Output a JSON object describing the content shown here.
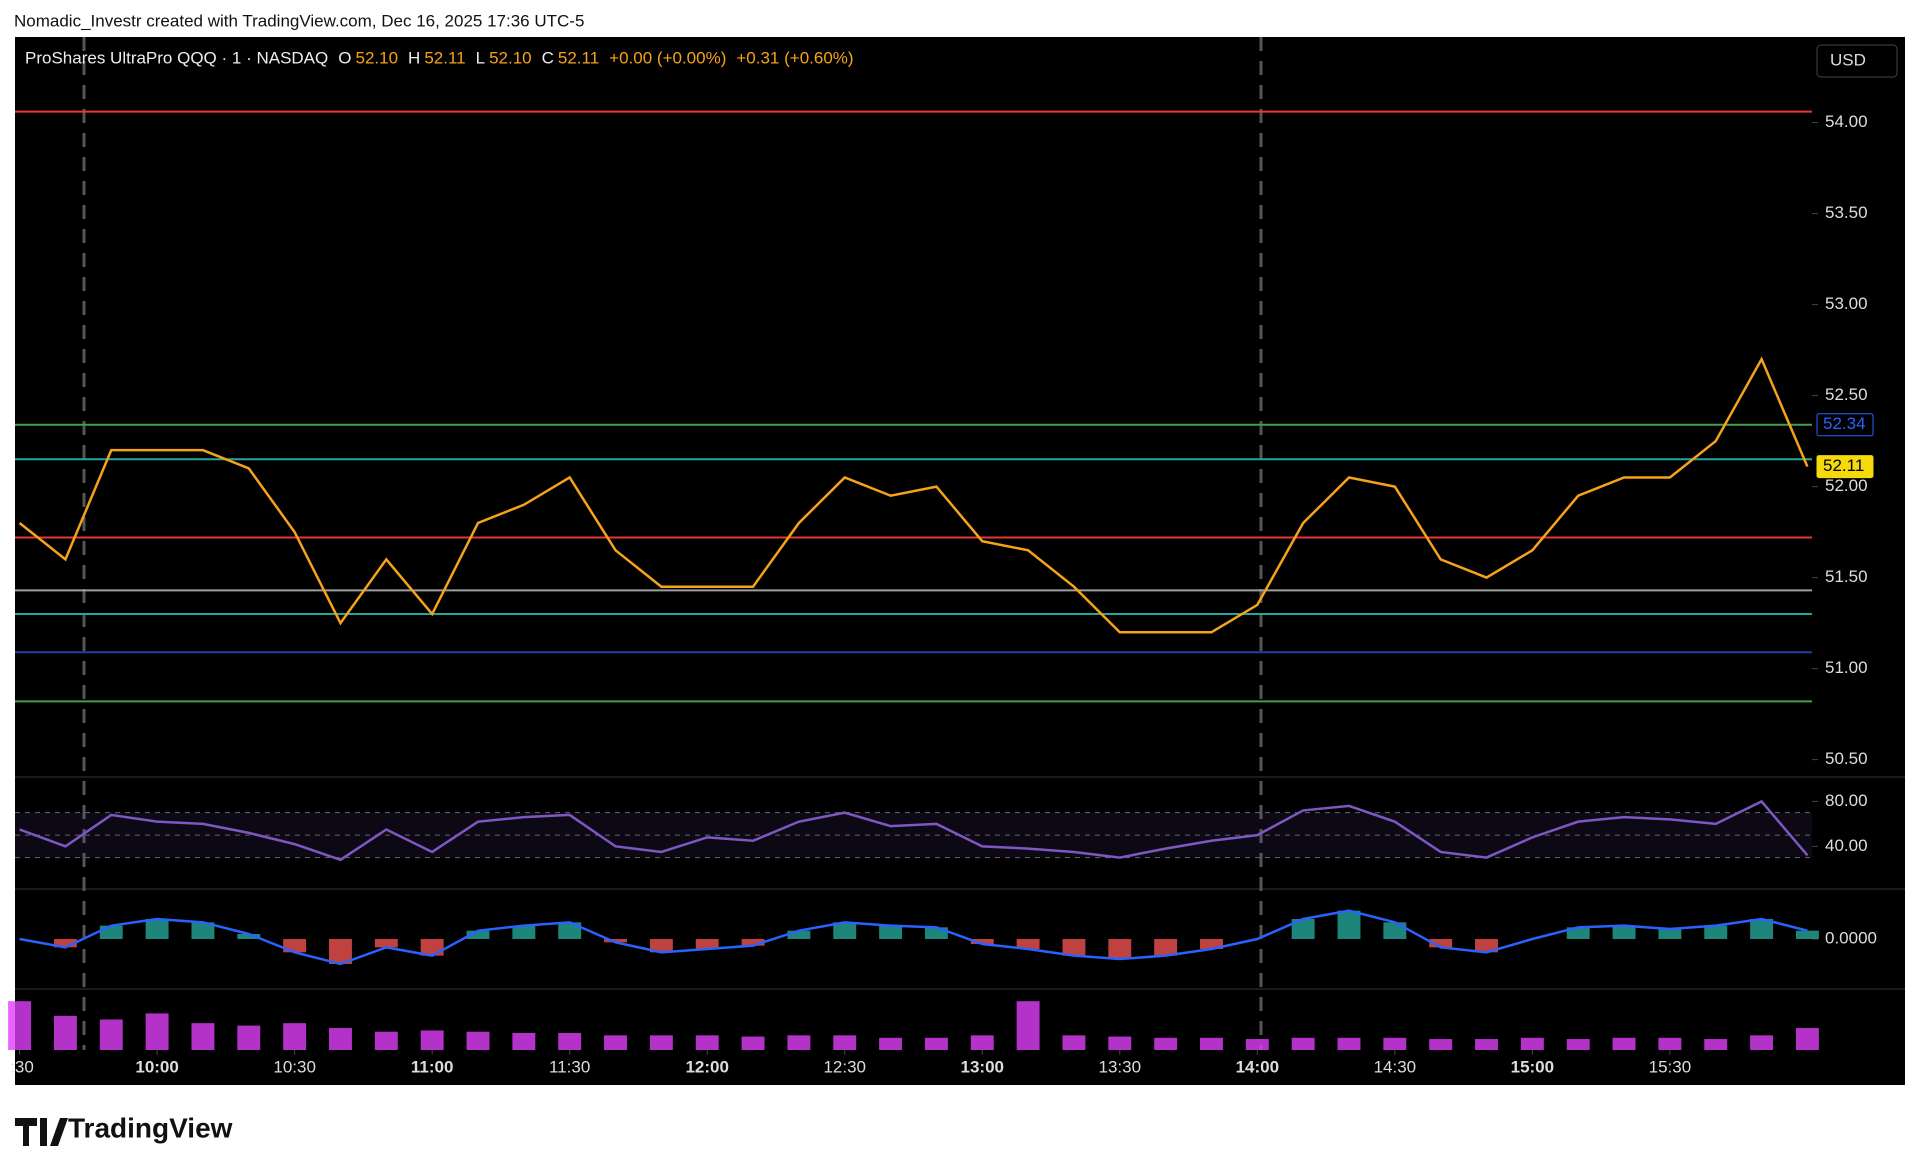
{
  "header": {
    "attribution": "Nomadic_Investr created with TradingView.com, Dec 16, 2025 17:36 UTC-5",
    "currency": "USD",
    "brand": "TradingView"
  },
  "chart_data": [
    {
      "type": "line",
      "title": "ProShares UltraPro QQQ · 1 · NASDAQ",
      "ohlc": [
        {
          "label": "O",
          "value": "52.10"
        },
        {
          "label": "H",
          "value": "52.11"
        },
        {
          "label": "L",
          "value": "52.10"
        },
        {
          "label": "C",
          "value": "52.11"
        }
      ],
      "changes": [
        "+0.00 (+0.00%)",
        "+0.31 (+0.60%)"
      ],
      "x": [
        570,
        580,
        590,
        600,
        610,
        620,
        630,
        640,
        650,
        660,
        670,
        680,
        690,
        700,
        710,
        720,
        730,
        740,
        750,
        760,
        770,
        780,
        790,
        800,
        810,
        820,
        830,
        840,
        850,
        860,
        870,
        880,
        890,
        900,
        910,
        920,
        930,
        940,
        950,
        960
      ],
      "series": [
        {
          "name": "Price",
          "color": "#f7a21b",
          "values": [
            51.8,
            51.6,
            52.2,
            52.2,
            52.2,
            52.1,
            51.75,
            51.25,
            51.6,
            51.3,
            51.8,
            51.9,
            52.05,
            51.65,
            51.45,
            51.45,
            51.45,
            51.8,
            52.05,
            51.95,
            52.0,
            51.7,
            51.65,
            51.45,
            51.2,
            51.2,
            51.2,
            51.35,
            51.8,
            52.05,
            52.0,
            51.6,
            51.5,
            51.65,
            51.95,
            52.05,
            52.05,
            52.25,
            52.7,
            52.11
          ]
        }
      ],
      "xlim": [
        569,
        961
      ],
      "xticks": [
        {
          "value": 570,
          "label": ":30"
        },
        {
          "value": 600,
          "label": "10:00"
        },
        {
          "value": 630,
          "label": "10:30"
        },
        {
          "value": 660,
          "label": "11:00"
        },
        {
          "value": 690,
          "label": "11:30"
        },
        {
          "value": 720,
          "label": "12:00"
        },
        {
          "value": 750,
          "label": "12:30"
        },
        {
          "value": 780,
          "label": "13:00"
        },
        {
          "value": 810,
          "label": "13:30"
        },
        {
          "value": 840,
          "label": "14:00"
        },
        {
          "value": 870,
          "label": "14:30"
        },
        {
          "value": 900,
          "label": "15:00"
        },
        {
          "value": 930,
          "label": "15:30"
        }
      ],
      "ylim": [
        50.41,
        54.47
      ],
      "yticks": [
        {
          "value": 50.5,
          "label": "50.50"
        },
        {
          "value": 51,
          "label": "51.00"
        },
        {
          "value": 51.5,
          "label": "51.50"
        },
        {
          "value": 52,
          "label": "52.00"
        },
        {
          "value": 52.5,
          "label": "52.50"
        },
        {
          "value": 53,
          "label": "53.00"
        },
        {
          "value": 53.5,
          "label": "53.50"
        },
        {
          "value": 54,
          "label": "54.00"
        }
      ],
      "levels": [
        {
          "value": 54.06,
          "color": "#e53935"
        },
        {
          "value": 52.34,
          "color": "#43a047"
        },
        {
          "value": 52.15,
          "color": "#26a69a"
        },
        {
          "value": 51.72,
          "color": "#e53935"
        },
        {
          "value": 51.43,
          "color": "#9e9e9e"
        },
        {
          "value": 51.3,
          "color": "#26a69a"
        },
        {
          "value": 51.09,
          "color": "#1e40af"
        },
        {
          "value": 50.82,
          "color": "#43a047"
        }
      ],
      "price_tags": [
        {
          "value": 52.34,
          "label": "52.34",
          "color": "#2962ff"
        },
        {
          "value": 52.11,
          "label": "52.11",
          "color": "#f5d90a"
        }
      ]
    },
    {
      "type": "rsi",
      "x": [
        570,
        580,
        590,
        600,
        610,
        620,
        630,
        640,
        650,
        660,
        670,
        680,
        690,
        700,
        710,
        720,
        730,
        740,
        750,
        760,
        770,
        780,
        790,
        800,
        810,
        820,
        830,
        840,
        850,
        860,
        870,
        880,
        890,
        900,
        910,
        920,
        930,
        940,
        950,
        960
      ],
      "series": [
        {
          "name": "RSI",
          "color": "#7e57c2",
          "values": [
            55,
            40,
            68,
            62,
            60,
            52,
            42,
            28,
            55,
            35,
            62,
            66,
            68,
            40,
            35,
            48,
            45,
            62,
            70,
            58,
            60,
            40,
            38,
            35,
            30,
            38,
            45,
            50,
            72,
            76,
            62,
            35,
            30,
            48,
            62,
            66,
            64,
            60,
            80,
            32
          ]
        }
      ],
      "ylim": [
        2,
        100
      ],
      "yticks": [
        {
          "value": 40,
          "label": "40.00"
        },
        {
          "value": 80,
          "label": "80.00"
        }
      ],
      "bands": [
        30,
        50,
        70
      ]
    },
    {
      "type": "macd",
      "x": [
        570,
        580,
        590,
        600,
        610,
        620,
        630,
        640,
        650,
        660,
        670,
        680,
        690,
        700,
        710,
        720,
        730,
        740,
        750,
        760,
        770,
        780,
        790,
        800,
        810,
        820,
        830,
        840,
        850,
        860,
        870,
        880,
        890,
        900,
        910,
        920,
        930,
        940,
        950,
        960
      ],
      "series": [
        {
          "name": "MACD",
          "color": "#2962ff",
          "values": [
            0.0,
            -0.05,
            0.08,
            0.12,
            0.1,
            0.03,
            -0.08,
            -0.15,
            -0.05,
            -0.1,
            0.05,
            0.08,
            0.1,
            -0.02,
            -0.08,
            -0.06,
            -0.04,
            0.05,
            0.1,
            0.08,
            0.07,
            -0.03,
            -0.06,
            -0.1,
            -0.12,
            -0.1,
            -0.06,
            0.0,
            0.12,
            0.17,
            0.1,
            -0.05,
            -0.08,
            0.0,
            0.07,
            0.08,
            0.06,
            0.08,
            0.12,
            0.05
          ]
        }
      ],
      "ylim": [
        -0.3,
        0.3
      ],
      "yticks": [
        {
          "value": 0,
          "label": "0.0000"
        }
      ]
    },
    {
      "type": "volume",
      "x": [
        570,
        580,
        590,
        600,
        610,
        620,
        630,
        640,
        650,
        660,
        670,
        680,
        690,
        700,
        710,
        720,
        730,
        740,
        750,
        760,
        770,
        780,
        790,
        800,
        810,
        820,
        830,
        840,
        850,
        860,
        870,
        880,
        890,
        900,
        910,
        920,
        930,
        940,
        950,
        960
      ],
      "series": [
        {
          "name": "Volume",
          "color": "#e040fb",
          "values": [
            40,
            28,
            25,
            30,
            22,
            20,
            22,
            18,
            15,
            16,
            15,
            14,
            14,
            12,
            12,
            12,
            11,
            12,
            12,
            10,
            10,
            12,
            40,
            12,
            11,
            10,
            10,
            9,
            10,
            10,
            10,
            9,
            9,
            10,
            9,
            10,
            10,
            9,
            12,
            18
          ]
        }
      ],
      "ylim": [
        0,
        50
      ]
    }
  ]
}
